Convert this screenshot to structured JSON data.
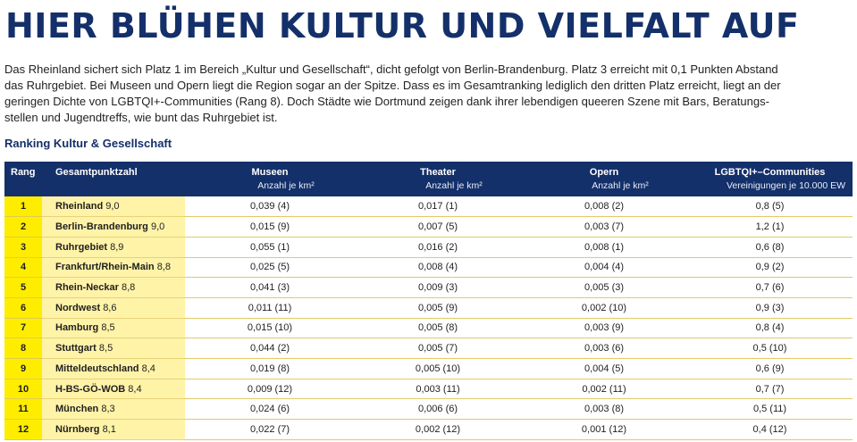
{
  "headline": "HIER BLÜHEN KULTUR UND VIELFALT AUF",
  "intro_lines": [
    "Das Rheinland sichert sich Platz 1 im Bereich „Kultur und Gesellschaft“, dicht gefolgt von Berlin-Brandenburg. Platz 3 erreicht mit 0,1 Punkten Abstand",
    "das Ruhrgebiet. Bei Museen und Opern liegt die Region sogar an der Spitze. Dass es im Gesamtranking lediglich den dritten Platz erreicht, liegt an der",
    "geringen Dichte von LGBTQI+-Communities (Rang 8). Doch Städte wie Dortmund zeigen dank ihrer lebendigen queeren Szene mit Bars, Beratungs-",
    "stellen und Jugendtreffs, wie bunt das Ruhrgebiet ist."
  ],
  "table_title": "Ranking Kultur & Gesellschaft",
  "columns": {
    "rang": "Rang",
    "gesamt": "Gesamtpunktzahl",
    "museen": "Museen",
    "museen_unit": "Anzahl je km²",
    "theater": "Theater",
    "theater_unit": "Anzahl je km²",
    "opern": "Opern",
    "opern_unit": "Anzahl je km²",
    "lgbtqi": "LGBTQI+–Communities",
    "lgbtqi_unit": "Vereinigungen je 10.000 EW"
  },
  "rows": [
    {
      "rank": "1",
      "region": "Rheinland",
      "score": "9,0",
      "museen": "0,039 (4)",
      "theater": "0,017 (1)",
      "opern": "0,008 (2)",
      "lgbtqi": "0,8 (5)"
    },
    {
      "rank": "2",
      "region": "Berlin-Brandenburg",
      "score": "9,0",
      "museen": "0,015 (9)",
      "theater": "0,007 (5)",
      "opern": "0,003 (7)",
      "lgbtqi": "1,2 (1)"
    },
    {
      "rank": "3",
      "region": "Ruhrgebiet",
      "score": "8,9",
      "museen": "0,055 (1)",
      "theater": "0,016 (2)",
      "opern": "0,008 (1)",
      "lgbtqi": "0,6 (8)"
    },
    {
      "rank": "4",
      "region": "Frankfurt/Rhein-Main",
      "score": "8,8",
      "museen": "0,025 (5)",
      "theater": "0,008 (4)",
      "opern": "0,004 (4)",
      "lgbtqi": "0,9 (2)"
    },
    {
      "rank": "5",
      "region": "Rhein-Neckar",
      "score": "8,8",
      "museen": "0,041 (3)",
      "theater": "0,009 (3)",
      "opern": "0,005 (3)",
      "lgbtqi": "0,7 (6)"
    },
    {
      "rank": "6",
      "region": "Nordwest",
      "score": "8,6",
      "museen": "0,011 (11)",
      "theater": "0,005 (9)",
      "opern": "0,002 (10)",
      "lgbtqi": "0,9 (3)"
    },
    {
      "rank": "7",
      "region": "Hamburg",
      "score": "8,5",
      "museen": "0,015 (10)",
      "theater": "0,005 (8)",
      "opern": "0,003 (9)",
      "lgbtqi": "0,8 (4)"
    },
    {
      "rank": "8",
      "region": "Stuttgart",
      "score": "8,5",
      "museen": "0,044 (2)",
      "theater": "0,005 (7)",
      "opern": "0,003 (6)",
      "lgbtqi": "0,5 (10)"
    },
    {
      "rank": "9",
      "region": "Mitteldeutschland",
      "score": "8,4",
      "museen": "0,019 (8)",
      "theater": "0,005 (10)",
      "opern": "0,004 (5)",
      "lgbtqi": "0,6 (9)"
    },
    {
      "rank": "10",
      "region": "H-BS-GÖ-WOB",
      "score": "8,4",
      "museen": "0,009 (12)",
      "theater": "0,003 (11)",
      "opern": "0,002 (11)",
      "lgbtqi": "0,7 (7)"
    },
    {
      "rank": "11",
      "region": "München",
      "score": "8,3",
      "museen": "0,024 (6)",
      "theater": "0,006 (6)",
      "opern": "0,003 (8)",
      "lgbtqi": "0,5 (11)"
    },
    {
      "rank": "12",
      "region": "Nürnberg",
      "score": "8,1",
      "museen": "0,022 (7)",
      "theater": "0,002 (12)",
      "opern": "0,001 (12)",
      "lgbtqi": "0,4 (12)"
    }
  ],
  "colors": {
    "headline": "#14306a",
    "header_bg": "#14306a",
    "rank_bg": "#ffed00",
    "name_bg": "#fff3a8",
    "row_line": "#e2c96a"
  }
}
